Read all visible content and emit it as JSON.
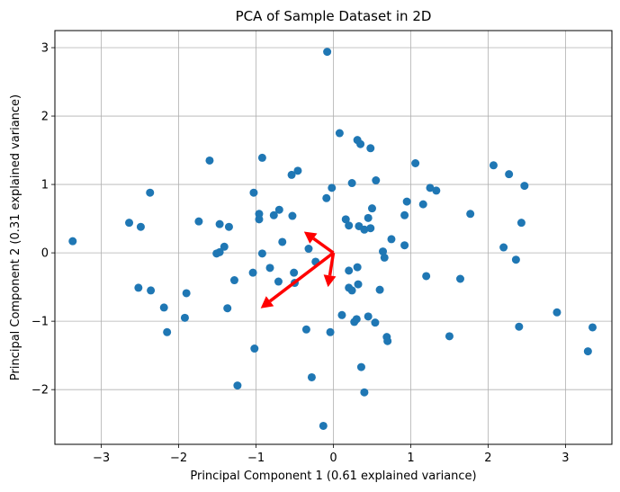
{
  "chart_data": {
    "type": "scatter",
    "title": "PCA of Sample Dataset in 2D",
    "xlabel": "Principal Component 1 (0.61 explained variance)",
    "ylabel": "Principal Component 2 (0.31 explained variance)",
    "xlim": [
      -3.6,
      3.6
    ],
    "ylim": [
      -2.8,
      3.25
    ],
    "xticks": [
      -3,
      -2,
      -1,
      0,
      1,
      2,
      3
    ],
    "yticks": [
      -2,
      -1,
      0,
      1,
      2,
      3
    ],
    "grid": true,
    "point_color": "#1f77b4",
    "arrow_color": "#ff0000",
    "points": [
      {
        "x": -0.08,
        "y": 2.94
      },
      {
        "x": 0.08,
        "y": 1.75
      },
      {
        "x": 0.31,
        "y": 1.65
      },
      {
        "x": 0.35,
        "y": 1.59
      },
      {
        "x": 0.48,
        "y": 1.53
      },
      {
        "x": -1.6,
        "y": 1.35
      },
      {
        "x": -0.92,
        "y": 1.39
      },
      {
        "x": 1.06,
        "y": 1.31
      },
      {
        "x": 2.07,
        "y": 1.28
      },
      {
        "x": -0.46,
        "y": 1.2
      },
      {
        "x": -0.54,
        "y": 1.14
      },
      {
        "x": 2.27,
        "y": 1.15
      },
      {
        "x": 0.24,
        "y": 1.02
      },
      {
        "x": 0.55,
        "y": 1.06
      },
      {
        "x": 2.47,
        "y": 0.98
      },
      {
        "x": -2.37,
        "y": 0.88
      },
      {
        "x": -1.03,
        "y": 0.88
      },
      {
        "x": 1.25,
        "y": 0.95
      },
      {
        "x": 1.33,
        "y": 0.91
      },
      {
        "x": -0.02,
        "y": 0.95
      },
      {
        "x": -0.09,
        "y": 0.8
      },
      {
        "x": 0.95,
        "y": 0.75
      },
      {
        "x": 1.16,
        "y": 0.71
      },
      {
        "x": -0.7,
        "y": 0.63
      },
      {
        "x": 0.5,
        "y": 0.65
      },
      {
        "x": -0.96,
        "y": 0.57
      },
      {
        "x": -0.77,
        "y": 0.55
      },
      {
        "x": -0.53,
        "y": 0.54
      },
      {
        "x": -0.96,
        "y": 0.49
      },
      {
        "x": 0.45,
        "y": 0.51
      },
      {
        "x": 0.92,
        "y": 0.55
      },
      {
        "x": 1.77,
        "y": 0.57
      },
      {
        "x": -1.74,
        "y": 0.46
      },
      {
        "x": -1.47,
        "y": 0.42
      },
      {
        "x": -2.64,
        "y": 0.44
      },
      {
        "x": -2.49,
        "y": 0.38
      },
      {
        "x": -1.35,
        "y": 0.38
      },
      {
        "x": 0.16,
        "y": 0.49
      },
      {
        "x": 0.2,
        "y": 0.4
      },
      {
        "x": 0.33,
        "y": 0.39
      },
      {
        "x": 0.4,
        "y": 0.34
      },
      {
        "x": 0.48,
        "y": 0.36
      },
      {
        "x": 2.43,
        "y": 0.44
      },
      {
        "x": -0.66,
        "y": 0.16
      },
      {
        "x": 0.75,
        "y": 0.2
      },
      {
        "x": 0.92,
        "y": 0.11
      },
      {
        "x": 2.2,
        "y": 0.08
      },
      {
        "x": -3.37,
        "y": 0.17
      },
      {
        "x": -1.41,
        "y": 0.09
      },
      {
        "x": -1.51,
        "y": -0.01
      },
      {
        "x": -0.92,
        "y": -0.01
      },
      {
        "x": -1.47,
        "y": 0.01
      },
      {
        "x": -0.32,
        "y": 0.06
      },
      {
        "x": 0.64,
        "y": 0.02
      },
      {
        "x": 0.66,
        "y": -0.07
      },
      {
        "x": 2.36,
        "y": -0.1
      },
      {
        "x": -0.23,
        "y": -0.13
      },
      {
        "x": 0.31,
        "y": -0.21
      },
      {
        "x": 0.2,
        "y": -0.26
      },
      {
        "x": -1.04,
        "y": -0.29
      },
      {
        "x": -0.51,
        "y": -0.29
      },
      {
        "x": -0.82,
        "y": -0.22
      },
      {
        "x": 1.2,
        "y": -0.34
      },
      {
        "x": 1.64,
        "y": -0.38
      },
      {
        "x": -1.28,
        "y": -0.4
      },
      {
        "x": -0.71,
        "y": -0.42
      },
      {
        "x": -0.5,
        "y": -0.44
      },
      {
        "x": 0.32,
        "y": -0.46
      },
      {
        "x": 0.2,
        "y": -0.51
      },
      {
        "x": 0.24,
        "y": -0.55
      },
      {
        "x": 0.6,
        "y": -0.54
      },
      {
        "x": -2.52,
        "y": -0.51
      },
      {
        "x": -2.36,
        "y": -0.55
      },
      {
        "x": -1.9,
        "y": -0.59
      },
      {
        "x": -1.37,
        "y": -0.81
      },
      {
        "x": -2.19,
        "y": -0.8
      },
      {
        "x": 0.11,
        "y": -0.91
      },
      {
        "x": 0.3,
        "y": -0.97
      },
      {
        "x": 0.27,
        "y": -1.01
      },
      {
        "x": 0.45,
        "y": -0.93
      },
      {
        "x": 0.54,
        "y": -1.02
      },
      {
        "x": -1.92,
        "y": -0.95
      },
      {
        "x": 2.89,
        "y": -0.87
      },
      {
        "x": -0.35,
        "y": -1.12
      },
      {
        "x": -0.04,
        "y": -1.16
      },
      {
        "x": -2.15,
        "y": -1.16
      },
      {
        "x": 2.4,
        "y": -1.08
      },
      {
        "x": 3.35,
        "y": -1.09
      },
      {
        "x": 0.69,
        "y": -1.23
      },
      {
        "x": 0.7,
        "y": -1.29
      },
      {
        "x": 1.5,
        "y": -1.22
      },
      {
        "x": -1.02,
        "y": -1.4
      },
      {
        "x": 3.29,
        "y": -1.44
      },
      {
        "x": 0.36,
        "y": -1.67
      },
      {
        "x": -0.28,
        "y": -1.82
      },
      {
        "x": -1.24,
        "y": -1.94
      },
      {
        "x": 0.4,
        "y": -2.04
      },
      {
        "x": -0.13,
        "y": -2.53
      }
    ],
    "arrows": [
      {
        "x1": 0,
        "y1": 0,
        "x2": -0.38,
        "y2": 0.31
      },
      {
        "x1": 0,
        "y1": 0,
        "x2": -0.07,
        "y2": -0.5
      },
      {
        "x1": 0,
        "y1": 0,
        "x2": -0.94,
        "y2": -0.81
      }
    ]
  }
}
